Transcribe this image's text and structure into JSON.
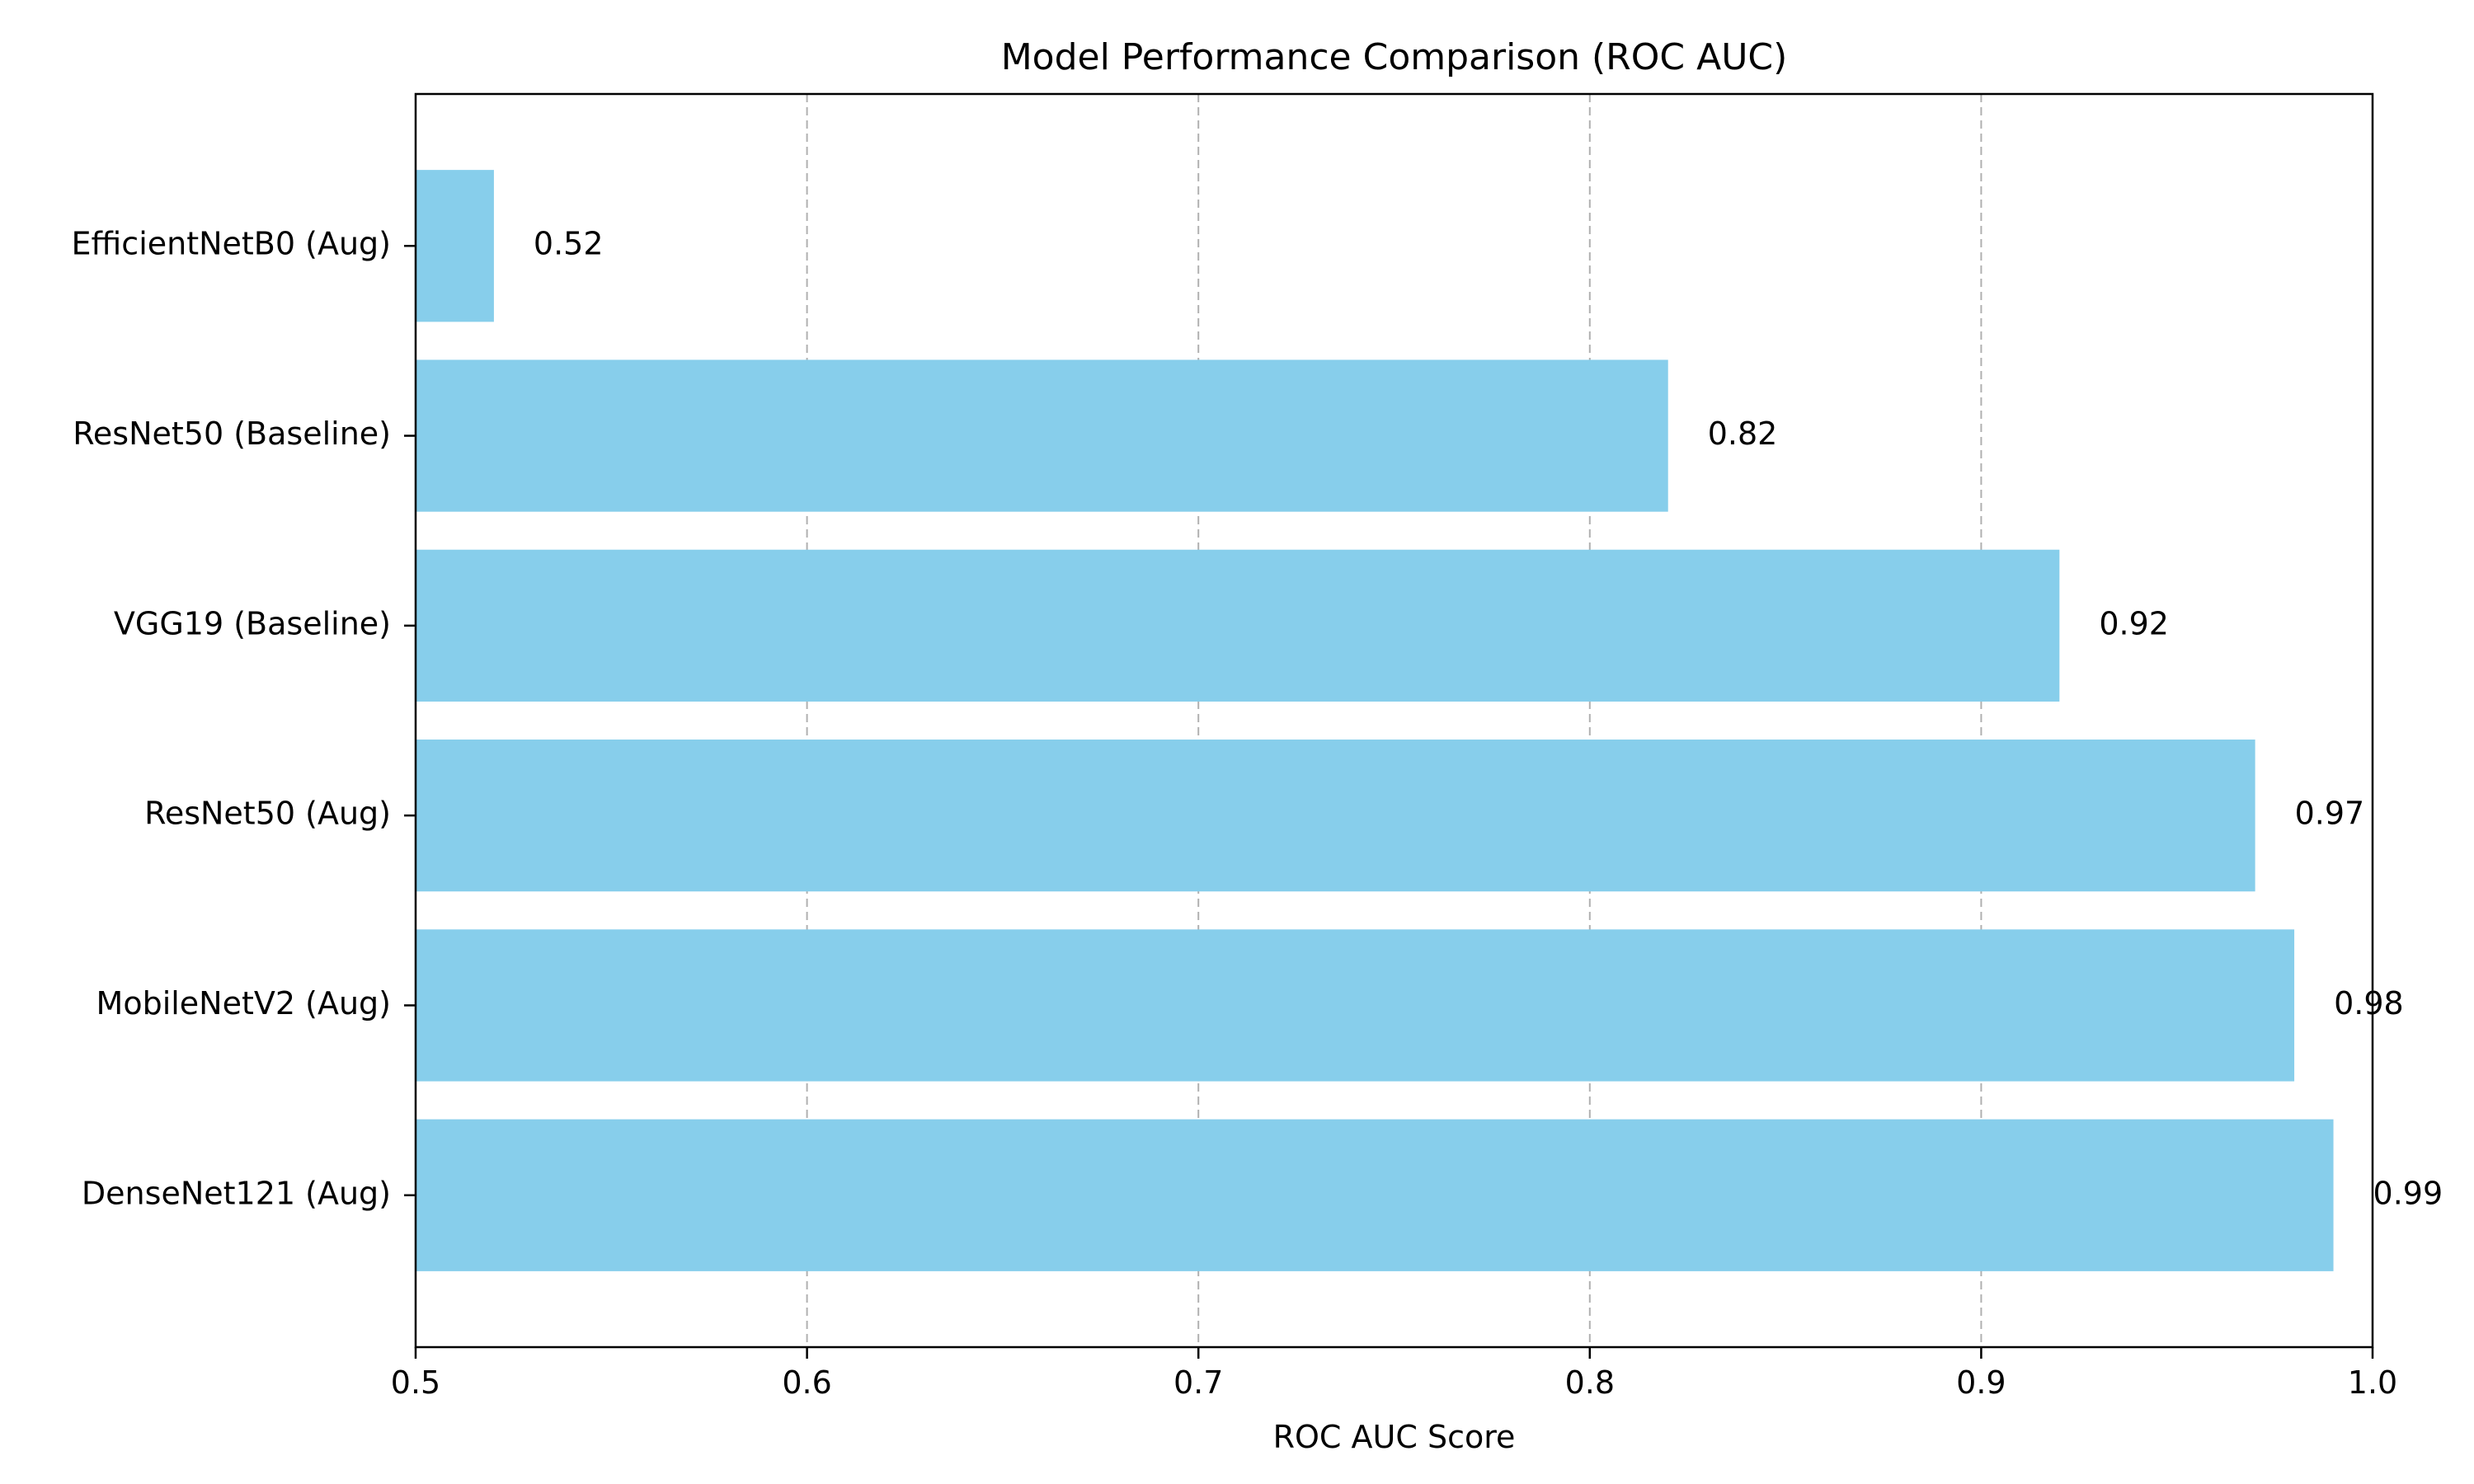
{
  "chart_data": {
    "type": "bar",
    "orientation": "horizontal",
    "title": "Model Performance Comparison (ROC AUC)",
    "xlabel": "ROC AUC Score",
    "ylabel": "",
    "xlim": [
      0.5,
      1.0
    ],
    "xticks": [
      {
        "value": 0.5,
        "label": "0.5"
      },
      {
        "value": 0.6,
        "label": "0.6"
      },
      {
        "value": 0.7,
        "label": "0.7"
      },
      {
        "value": 0.8,
        "label": "0.8"
      },
      {
        "value": 0.9,
        "label": "0.9"
      },
      {
        "value": 1.0,
        "label": "1.0"
      }
    ],
    "categories": [
      "DenseNet121 (Aug)",
      "MobileNetV2 (Aug)",
      "ResNet50 (Aug)",
      "VGG19 (Baseline)",
      "ResNet50 (Baseline)",
      "EfficientNetB0 (Aug)"
    ],
    "values": [
      0.99,
      0.98,
      0.97,
      0.92,
      0.82,
      0.52
    ],
    "value_labels": [
      "0.99",
      "0.98",
      "0.97",
      "0.92",
      "0.82",
      "0.52"
    ],
    "bar_color": "#87ceeb",
    "grid": {
      "x": true,
      "y": false,
      "style": "dashed",
      "color": "#b0b0b0"
    },
    "legend": "none"
  }
}
